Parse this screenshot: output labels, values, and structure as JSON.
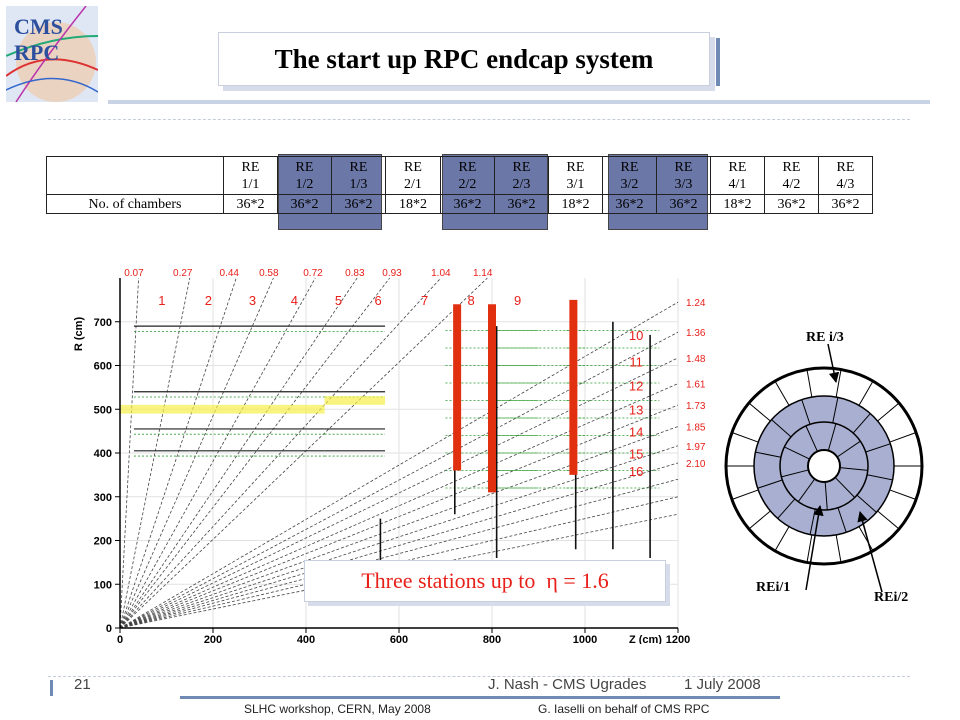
{
  "header": {
    "logo_label": "CMS RPC",
    "title": "The start up RPC endcap system"
  },
  "chamber_table": {
    "row_label": "No. of chambers",
    "columns": [
      {
        "line1": "RE",
        "line2": "1/1",
        "count": "36*2"
      },
      {
        "line1": "RE",
        "line2": "1/2",
        "count": "36*2"
      },
      {
        "line1": "RE",
        "line2": "1/3",
        "count": "36*2"
      },
      {
        "line1": "RE",
        "line2": "2/1",
        "count": "18*2"
      },
      {
        "line1": "RE",
        "line2": "2/2",
        "count": "36*2"
      },
      {
        "line1": "RE",
        "line2": "2/3",
        "count": "36*2"
      },
      {
        "line1": "RE",
        "line2": "3/1",
        "count": "18*2"
      },
      {
        "line1": "RE",
        "line2": "3/2",
        "count": "36*2"
      },
      {
        "line1": "RE",
        "line2": "3/3",
        "count": "36*2"
      },
      {
        "line1": "RE",
        "line2": "4/1",
        "count": "18*2"
      },
      {
        "line1": "RE",
        "line2": "4/2",
        "count": "36*2"
      },
      {
        "line1": "RE",
        "line2": "4/3",
        "count": "36*2"
      }
    ],
    "highlight_color": "#6b77a6"
  },
  "chart": {
    "y_axis_label": "R (cm)",
    "x_axis_label": "Z (cm)",
    "y_ticks": [
      "0",
      "100",
      "200",
      "300",
      "400",
      "500",
      "600",
      "700"
    ],
    "x_ticks": [
      "0",
      "200",
      "400",
      "600",
      "800",
      "1000",
      "1200"
    ],
    "eta_top": [
      "0.07",
      "0.27",
      "0.44",
      "0.58",
      "0.72",
      "0.83",
      "0.93",
      "1.04",
      "1.14"
    ],
    "tower_numbers": [
      "1",
      "2",
      "3",
      "4",
      "5",
      "6",
      "7",
      "8",
      "9",
      "10",
      "11",
      "12",
      "13",
      "14",
      "15",
      "16"
    ],
    "eta_right": [
      "1.24",
      "1.36",
      "1.48",
      "1.61",
      "1.73",
      "1.85",
      "1.97",
      "2.10"
    ],
    "callout": "Three stations up to  η = 1.6",
    "eta_color": "#e8201a",
    "station_color": "#e03010"
  },
  "wheel": {
    "label_outer": "RE i/3",
    "label_inner": "REi/1",
    "label_middle": "REi/2",
    "fill_color": "#a8afd0"
  },
  "footer": {
    "page_number": "21",
    "author": "J. Nash - CMS Ugrades",
    "date": "1 July 2008",
    "workshop": "SLHC workshop, CERN,   May 2008",
    "credit": "G. Iaselli on behalf of CMS RPC"
  }
}
